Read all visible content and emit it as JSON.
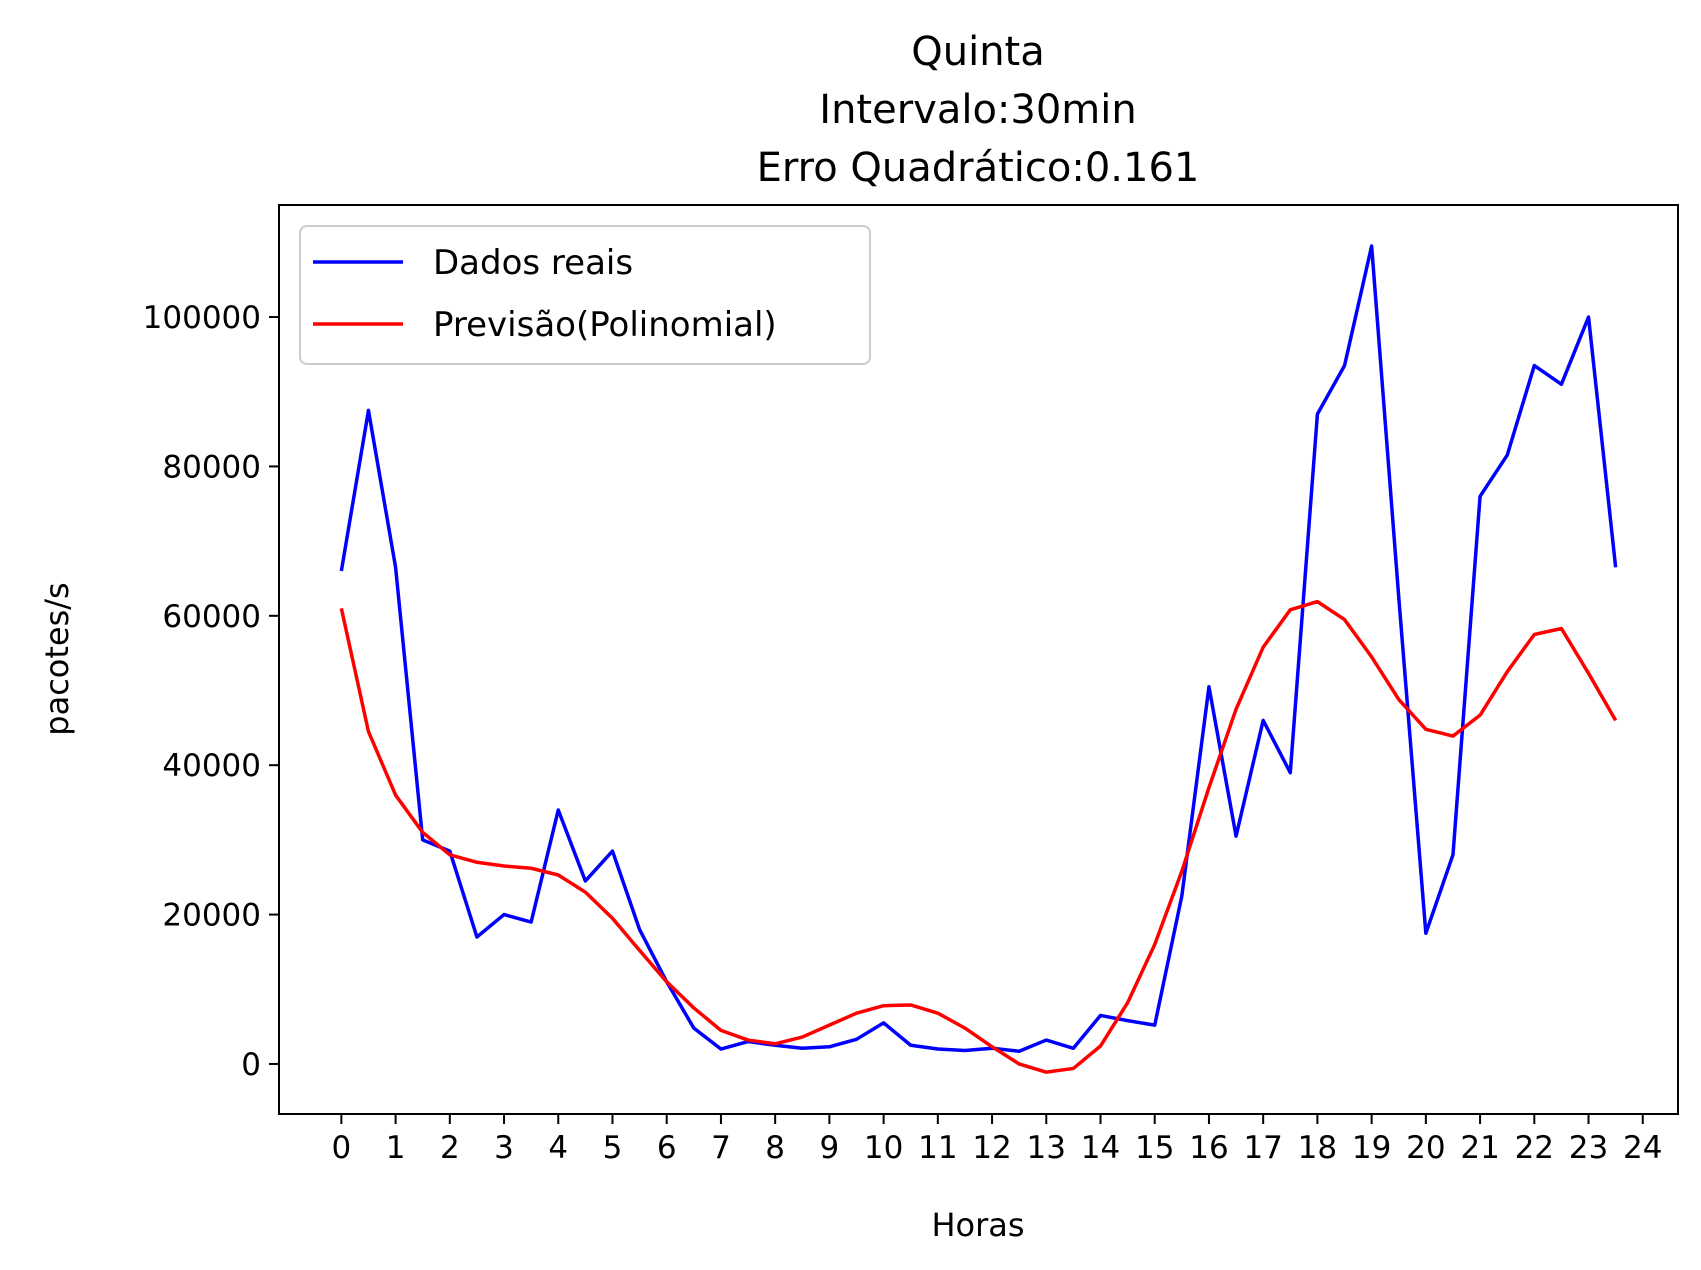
{
  "chart_data": {
    "type": "line",
    "title_lines": [
      "Quinta",
      "Intervalo:30min",
      "Erro Quadrático:0.161"
    ],
    "xlabel": "Horas",
    "ylabel": "pacotes/s",
    "xlim": [
      -1.15,
      24.65
    ],
    "ylim": [
      -6700,
      115000
    ],
    "xticks": [
      0,
      1,
      2,
      3,
      4,
      5,
      6,
      7,
      8,
      9,
      10,
      11,
      12,
      13,
      14,
      15,
      16,
      17,
      18,
      19,
      20,
      21,
      22,
      23,
      24
    ],
    "xtick_labels": [
      "0",
      "1",
      "2",
      "3",
      "4",
      "5",
      "6",
      "7",
      "8",
      "9",
      "10",
      "11",
      "12",
      "13",
      "14",
      "15",
      "16",
      "17",
      "18",
      "19",
      "20",
      "21",
      "22",
      "23",
      "24"
    ],
    "yticks": [
      0,
      20000,
      40000,
      60000,
      80000,
      100000
    ],
    "ytick_labels": [
      "0",
      "20000",
      "40000",
      "60000",
      "80000",
      "100000"
    ],
    "grid": false,
    "legend_position": "top-left",
    "x": [
      0,
      0.5,
      1,
      1.5,
      2,
      2.5,
      3,
      3.5,
      4,
      4.5,
      5,
      5.5,
      6,
      6.5,
      7,
      7.5,
      8,
      8.5,
      9,
      9.5,
      10,
      10.5,
      11,
      11.5,
      12,
      12.5,
      13,
      13.5,
      14,
      14.5,
      15,
      15.5,
      16,
      16.5,
      17,
      17.5,
      18,
      18.5,
      19,
      19.5,
      20,
      20.5,
      21,
      21.5,
      22,
      22.5,
      23,
      23.5
    ],
    "series": [
      {
        "name": "Dados reais",
        "color": "#0000ff",
        "values": [
          66000,
          87500,
          66500,
          30000,
          28500,
          17000,
          20000,
          19000,
          34000,
          24500,
          28500,
          18000,
          11000,
          4800,
          2000,
          3000,
          2500,
          2100,
          2300,
          3300,
          5500,
          2500,
          2000,
          1800,
          2100,
          1700,
          3200,
          2100,
          6500,
          5800,
          5200,
          22500,
          50500,
          30500,
          46000,
          39000,
          87000,
          93500,
          109500,
          62500,
          17500,
          28000,
          76000,
          81500,
          93500,
          91000,
          100000,
          66500
        ]
      },
      {
        "name": "Previsão(Polinomial)",
        "color": "#ff0000",
        "values": [
          61000,
          44500,
          36000,
          31000,
          28000,
          27000,
          26500,
          26200,
          25300,
          23000,
          19500,
          15200,
          11000,
          7500,
          4500,
          3200,
          2700,
          3600,
          5200,
          6800,
          7800,
          7900,
          6800,
          4800,
          2300,
          0,
          -1100,
          -600,
          2400,
          8200,
          16000,
          25800,
          37000,
          47500,
          55800,
          60800,
          61900,
          59500,
          54500,
          48800,
          44800,
          43900,
          46700,
          52500,
          57500,
          58300,
          52300,
          46000
        ]
      }
    ]
  }
}
